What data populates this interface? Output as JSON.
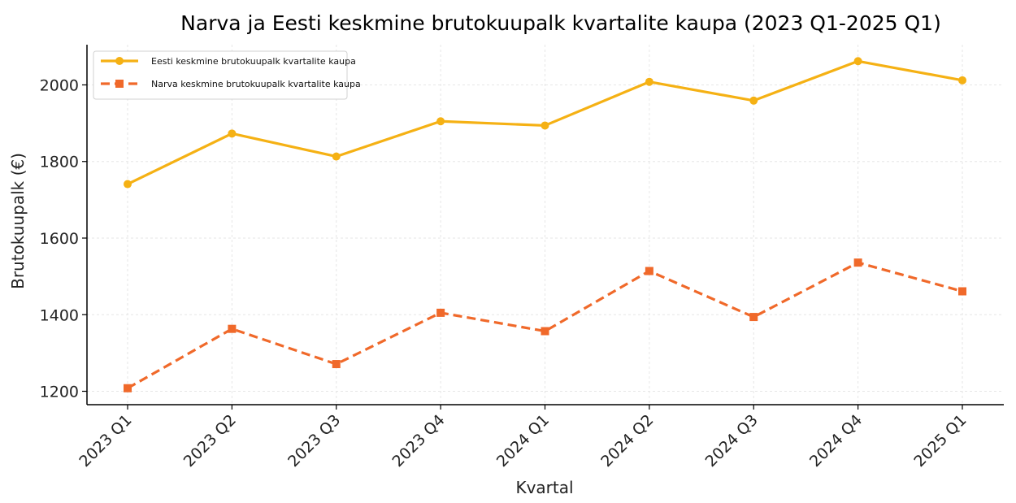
{
  "chart_data": {
    "type": "line",
    "title": "Narva ja Eesti keskmine brutokuupalk kvartalite kaupa (2023 Q1-2025 Q1)",
    "xlabel": "Kvartal",
    "ylabel": "Brutokuupalk (€)",
    "categories": [
      "2023 Q1",
      "2023 Q2",
      "2023 Q3",
      "2023 Q4",
      "2024 Q1",
      "2024 Q2",
      "2024 Q3",
      "2024 Q4",
      "2025 Q1"
    ],
    "y_ticks": [
      1200,
      1400,
      1600,
      1800,
      2000
    ],
    "ylim": [
      1165,
      2105
    ],
    "grid": true,
    "legend_position": "top-left",
    "series": [
      {
        "name": "Eesti keskmine brutokuupalk kvartalite kaupa",
        "values": [
          1741,
          1873,
          1813,
          1905,
          1894,
          2008,
          1959,
          2062,
          2012
        ],
        "color": "#f5b114",
        "marker": "circle",
        "line_style": "solid"
      },
      {
        "name": "Narva keskmine brutokuupalk kvartalite kaupa",
        "values": [
          1208,
          1363,
          1271,
          1405,
          1357,
          1514,
          1394,
          1536,
          1461
        ],
        "color": "#f0692a",
        "marker": "square",
        "line_style": "dashed"
      }
    ]
  }
}
